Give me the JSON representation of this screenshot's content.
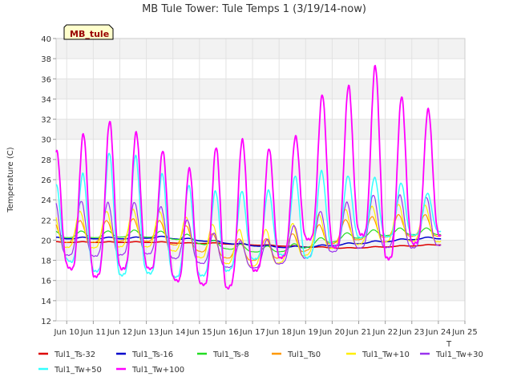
{
  "chart_data": {
    "type": "line",
    "title": "MB Tule Tower: Tule Temps 1 (3/19/14-now)",
    "ylabel": "Temperature (C)",
    "xlabel": "T",
    "site_badge": "MB_tule",
    "ylim": [
      12,
      40
    ],
    "yticks": [
      12,
      14,
      16,
      18,
      20,
      22,
      24,
      26,
      28,
      30,
      32,
      34,
      36,
      38,
      40
    ],
    "xlim": [
      9.6,
      25.0
    ],
    "xticks": [
      {
        "v": 10,
        "label": "Jun 10"
      },
      {
        "v": 11,
        "label": "Jun 11"
      },
      {
        "v": 12,
        "label": "Jun 12"
      },
      {
        "v": 13,
        "label": "Jun 13"
      },
      {
        "v": 14,
        "label": "Jun 14"
      },
      {
        "v": 15,
        "label": "Jun 15"
      },
      {
        "v": 16,
        "label": "Jun 16"
      },
      {
        "v": 17,
        "label": "Jun 17"
      },
      {
        "v": 18,
        "label": "Jun 18"
      },
      {
        "v": 19,
        "label": "Jun 19"
      },
      {
        "v": 20,
        "label": "Jun 20"
      },
      {
        "v": 21,
        "label": "Jun 21"
      },
      {
        "v": 22,
        "label": "Jun 22"
      },
      {
        "v": 23,
        "label": "Jun 23"
      },
      {
        "v": 24,
        "label": "Jun 24"
      },
      {
        "v": 25,
        "label": "Jun 25"
      }
    ],
    "grid": true,
    "legend_position": "bottom",
    "x_start": 9.6,
    "x_end": 24.1,
    "series": [
      {
        "name": "Tul1_Ts-32",
        "color": "#dd0000",
        "width": 1.5,
        "base": [
          19.8,
          19.8,
          19.8,
          19.8,
          19.8,
          19.7,
          19.7,
          19.6,
          19.5,
          19.4,
          19.3,
          19.2,
          19.3,
          19.4,
          19.5,
          19.6
        ],
        "amp": [
          0.05
        ],
        "phase": 0.6
      },
      {
        "name": "Tul1_Ts-16",
        "color": "#0000cc",
        "width": 1.5,
        "base": [
          20.2,
          20.2,
          20.2,
          20.2,
          20.3,
          20.1,
          19.9,
          19.6,
          19.4,
          19.3,
          19.4,
          19.6,
          19.8,
          20.0,
          20.2,
          20.2
        ],
        "amp": [
          0.1
        ],
        "phase": 0.6
      },
      {
        "name": "Tul1_Ts-8",
        "color": "#22dd22",
        "width": 1.2,
        "base": [
          20.5,
          20.5,
          20.5,
          20.6,
          20.5,
          20.2,
          19.6,
          19.2,
          19.0,
          19.2,
          19.8,
          20.3,
          20.6,
          20.8,
          20.8,
          20.8
        ],
        "amp": [
          0.4
        ],
        "phase": 0.55
      },
      {
        "name": "Tul1_Ts0",
        "color": "#ff9900",
        "width": 1.2,
        "base": [
          20.6,
          20.6,
          20.6,
          20.8,
          20.6,
          20.1,
          19.3,
          18.8,
          18.8,
          19.3,
          20.2,
          20.7,
          21.0,
          21.2,
          21.2,
          21.2
        ],
        "amp": [
          1.3
        ],
        "phase": 0.5
      },
      {
        "name": "Tul1_Tw+10",
        "color": "#ffee00",
        "width": 1.2,
        "base": [
          20.7,
          20.6,
          20.6,
          20.8,
          20.6,
          20.0,
          19.3,
          18.8,
          18.8,
          19.4,
          20.3,
          20.8,
          21.1,
          21.3,
          21.2,
          21.2
        ],
        "amp": [
          2.2
        ],
        "phase": 0.5
      },
      {
        "name": "Tul1_Tw+30",
        "color": "#9933ee",
        "width": 1.2,
        "base": [
          20.6,
          20.5,
          20.4,
          20.6,
          20.4,
          19.5,
          18.7,
          18.2,
          18.3,
          19.2,
          20.2,
          20.8,
          21.3,
          21.2,
          21.2,
          21.2
        ],
        "amp": [
          3.3,
          3.3,
          3.2,
          3.0,
          2.8,
          2.2,
          1.8,
          1.6,
          1.8,
          2.4,
          2.7,
          3.0,
          3.2,
          3.2,
          2.8
        ],
        "phase": 0.55
      },
      {
        "name": "Tul1_Tw+50",
        "color": "#33ffff",
        "width": 1.5,
        "base": [
          21.0,
          20.7,
          21.2,
          21.3,
          20.3,
          19.8,
          19.6,
          20.3,
          20.8,
          21.3,
          21.8,
          22.3,
          22.6,
          22.4,
          22.2,
          22.0
        ],
        "amp": [
          4.5,
          6.5,
          7.8,
          6.5,
          6.0,
          5.2,
          5.0,
          4.0,
          4.0,
          5.5,
          4.5,
          3.6,
          3.5,
          3.0,
          2.0
        ],
        "phase": 0.6
      },
      {
        "name": "Tul1_Tw+100",
        "color": "#ff00ff",
        "width": 1.8,
        "base": [
          21.7,
          21.7,
          22.5,
          22.5,
          21.5,
          19.8,
          20.3,
          21.5,
          21.6,
          23.1,
          25.3,
          25.6,
          26.6,
          24.3,
          25.0,
          25.0
        ],
        "amp": [
          7.0,
          9.5,
          8.8,
          7.7,
          7.2,
          7.0,
          9.5,
          7.5,
          6.9,
          6.7,
          10.2,
          8.9,
          11.8,
          8.3,
          7.5
        ],
        "phase": 0.62
      }
    ]
  }
}
